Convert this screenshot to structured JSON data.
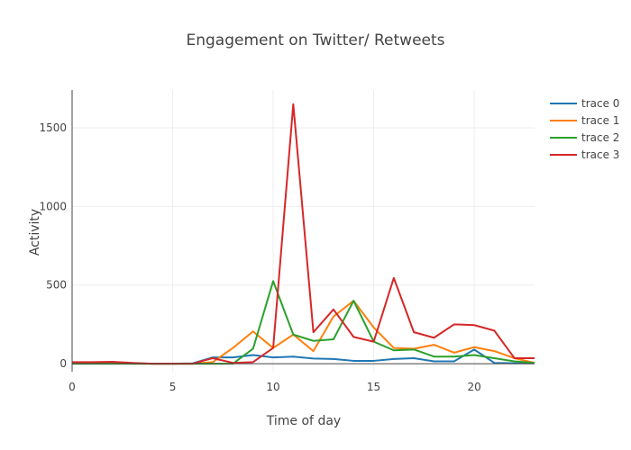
{
  "chart_data": {
    "type": "line",
    "title": "Engagement on Twitter/ Retweets",
    "xlabel": "Time of day",
    "ylabel": "Activity",
    "xlim": [
      0,
      23
    ],
    "ylim": [
      -51,
      1740
    ],
    "xticks": [
      0,
      5,
      10,
      15,
      20
    ],
    "yticks": [
      0,
      500,
      1000,
      1500
    ],
    "grid": true,
    "legend": "top-right",
    "x": [
      0,
      1,
      2,
      3,
      4,
      5,
      6,
      7,
      8,
      9,
      10,
      11,
      12,
      13,
      14,
      15,
      16,
      17,
      18,
      19,
      20,
      21,
      22,
      23
    ],
    "series": [
      {
        "name": "trace 0",
        "color": "#1f77b4",
        "values": [
          5,
          5,
          5,
          3,
          0,
          0,
          2,
          40,
          40,
          55,
          40,
          45,
          33,
          30,
          18,
          18,
          30,
          35,
          15,
          15,
          90,
          5,
          3,
          3
        ]
      },
      {
        "name": "trace 1",
        "color": "#ff7f0e",
        "values": [
          5,
          5,
          5,
          0,
          0,
          0,
          0,
          10,
          100,
          205,
          100,
          185,
          80,
          300,
          400,
          230,
          100,
          95,
          120,
          70,
          105,
          80,
          35,
          5
        ]
      },
      {
        "name": "trace 2",
        "color": "#2ca02c",
        "values": [
          0,
          0,
          0,
          0,
          0,
          0,
          0,
          0,
          0,
          95,
          525,
          185,
          145,
          155,
          400,
          140,
          85,
          90,
          45,
          45,
          55,
          35,
          15,
          5
        ]
      },
      {
        "name": "trace 3",
        "color": "#d62728",
        "values": [
          10,
          10,
          12,
          5,
          0,
          0,
          0,
          35,
          5,
          10,
          100,
          1650,
          200,
          345,
          170,
          140,
          545,
          200,
          165,
          250,
          245,
          210,
          35,
          35
        ]
      }
    ]
  }
}
